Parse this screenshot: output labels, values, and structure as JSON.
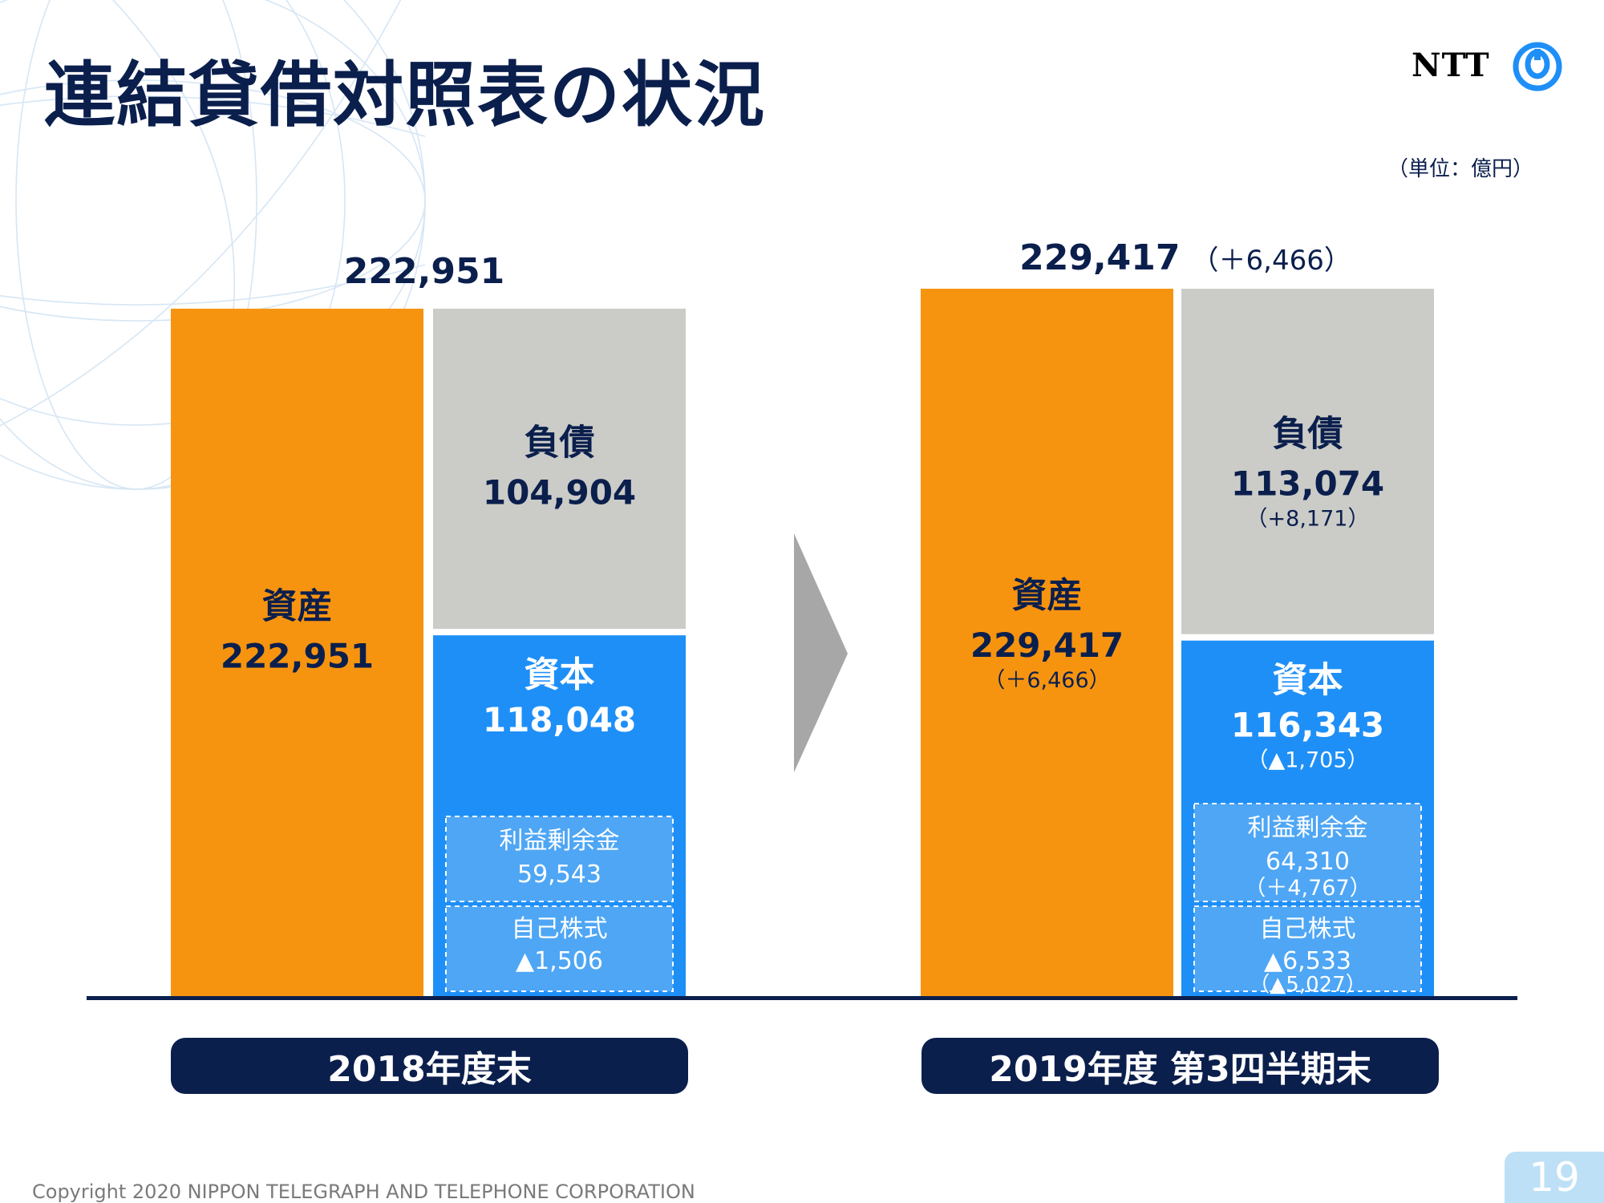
{
  "header": {
    "title": "連結貸借対照表の状況",
    "logo_text": "NTT",
    "unit": "（単位：億円）"
  },
  "colors": {
    "assets": "#f7940f",
    "liabilities": "#cbccc8",
    "equity": "#1e8ff7",
    "sub_box": "#4ea6f5",
    "navy": "#0b1f4d",
    "arrow": "#a7a7a7"
  },
  "chart_data": {
    "type": "bar",
    "title": "連結貸借対照表の状況",
    "unit": "億円",
    "categories": [
      "2018年度末",
      "2019年度 第3四半期末"
    ],
    "periods": [
      {
        "label": "2018年度末",
        "total_label": "222,951",
        "total_change": "",
        "assets": {
          "name": "資産",
          "value": 222951,
          "value_label": "222,951",
          "change_label": ""
        },
        "liabilities": {
          "name": "負債",
          "value": 104904,
          "value_label": "104,904",
          "change_label": ""
        },
        "equity": {
          "name": "資本",
          "value": 118048,
          "value_label": "118,048",
          "change_label": ""
        },
        "retained_earnings": {
          "name": "利益剰余金",
          "value": 59543,
          "value_label": "59,543",
          "change_label": ""
        },
        "treasury_stock": {
          "name": "自己株式",
          "value": -1506,
          "value_label": "▲1,506",
          "change_label": ""
        }
      },
      {
        "label": "2019年度 第3四半期末",
        "total_label": "229,417",
        "total_change": "（＋6,466）",
        "assets": {
          "name": "資産",
          "value": 229417,
          "value_label": "229,417",
          "change_label": "（＋6,466）"
        },
        "liabilities": {
          "name": "負債",
          "value": 113074,
          "value_label": "113,074",
          "change_label": "（+8,171）"
        },
        "equity": {
          "name": "資本",
          "value": 116343,
          "value_label": "116,343",
          "change_label": "（▲1,705）"
        },
        "retained_earnings": {
          "name": "利益剰余金",
          "value": 64310,
          "value_label": "64,310",
          "change_label": "（＋4,767）"
        },
        "treasury_stock": {
          "name": "自己株式",
          "value": -6533,
          "value_label": "▲6,533",
          "change_label": "（▲5,027）"
        }
      }
    ]
  },
  "footer": {
    "copyright": "Copyright 2020 NIPPON TELEGRAPH AND TELEPHONE CORPORATION",
    "page_number": "19"
  }
}
